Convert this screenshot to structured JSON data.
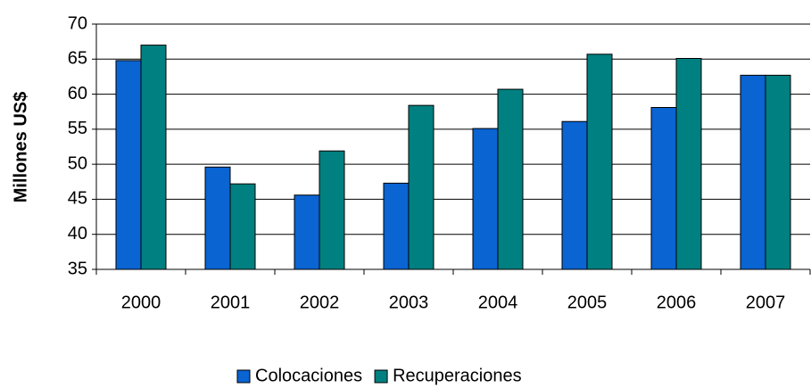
{
  "chart_data": {
    "type": "bar",
    "y_label": "Millones US$",
    "categories": [
      "2000",
      "2001",
      "2002",
      "2003",
      "2004",
      "2005",
      "2006",
      "2007"
    ],
    "series": [
      {
        "name": "Colocaciones",
        "color": "#0a64d2",
        "values": [
          64.8,
          49.6,
          45.6,
          47.3,
          55.1,
          56.1,
          58.1,
          62.7
        ]
      },
      {
        "name": "Recuperaciones",
        "color": "#008080",
        "values": [
          67.0,
          47.2,
          51.9,
          58.4,
          60.7,
          65.7,
          65.1,
          62.7
        ]
      }
    ],
    "ylim": [
      35,
      70
    ],
    "yticks": [
      35,
      40,
      45,
      50,
      55,
      60,
      65,
      70
    ],
    "grid": true,
    "legend": "bottom"
  }
}
